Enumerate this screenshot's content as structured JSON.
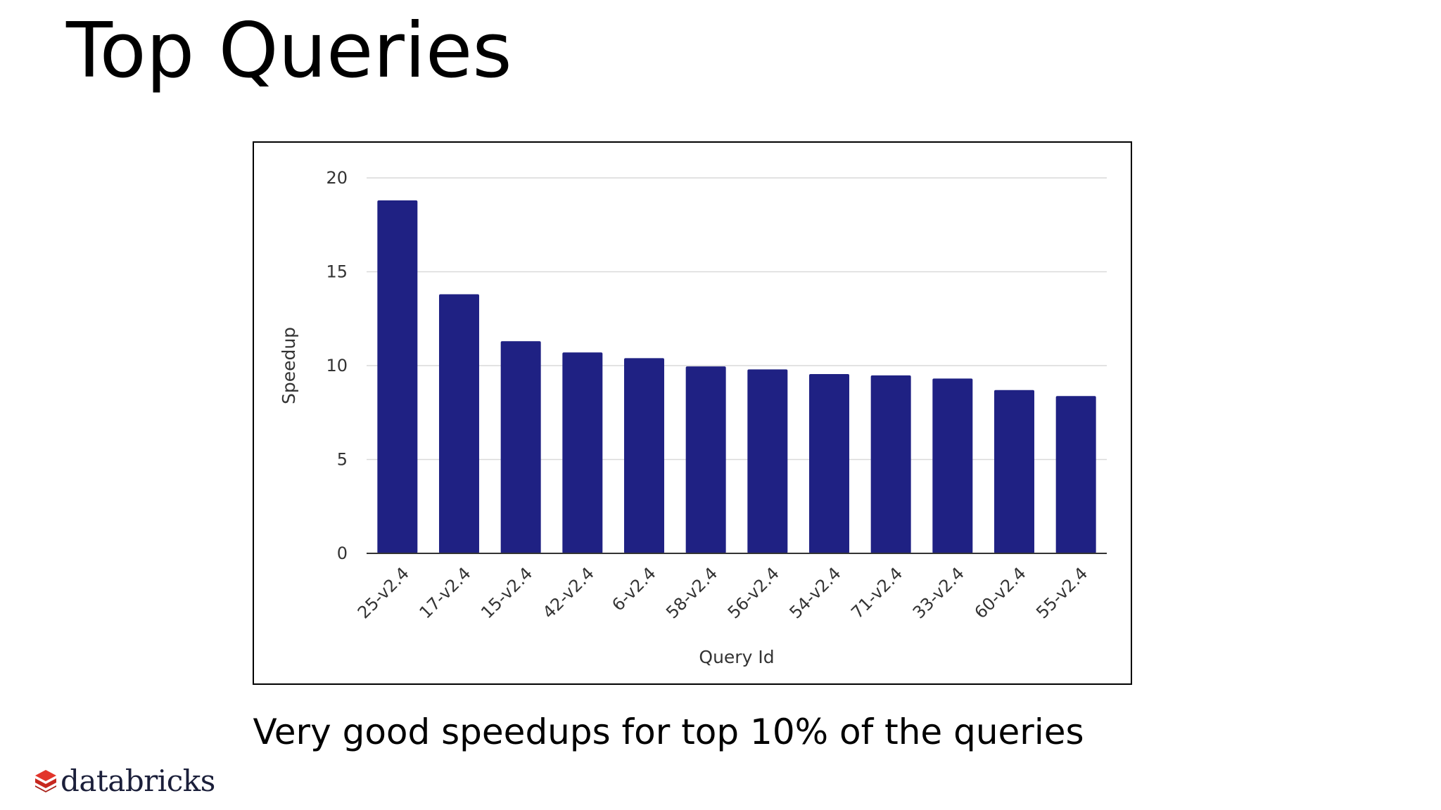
{
  "slide": {
    "title": "Top Queries",
    "caption": "Very good speedups for top 10% of the queries",
    "brand": "databricks"
  },
  "colors": {
    "bar": "#1f2183",
    "grid": "#d9d9d9",
    "axis": "#333333",
    "logo": "#e2352b"
  },
  "chart_data": {
    "type": "bar",
    "xlabel": "Query Id",
    "ylabel": "Speedup",
    "ylim": [
      0,
      20
    ],
    "yticks": [
      0,
      5,
      10,
      15,
      20
    ],
    "grid": true,
    "legend": "none",
    "categories": [
      "25-v2.4",
      "17-v2.4",
      "15-v2.4",
      "42-v2.4",
      "6-v2.4",
      "58-v2.4",
      "56-v2.4",
      "54-v2.4",
      "71-v2.4",
      "33-v2.4",
      "60-v2.4",
      "55-v2.4"
    ],
    "values": [
      18.8,
      13.8,
      11.3,
      10.7,
      10.4,
      9.96,
      9.8,
      9.55,
      9.48,
      9.31,
      8.7,
      8.38
    ]
  }
}
